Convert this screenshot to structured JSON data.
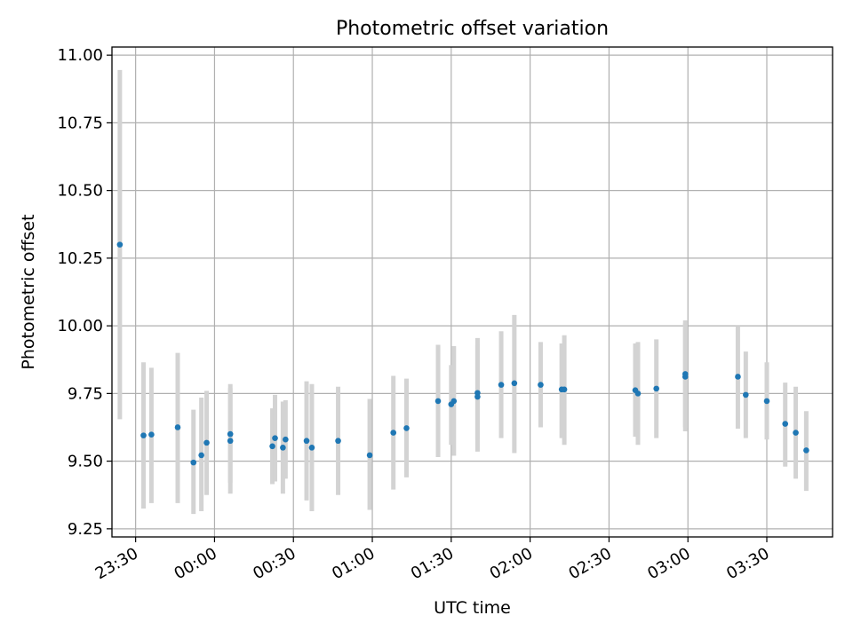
{
  "chart_data": {
    "type": "scatter",
    "title": "Photometric offset variation",
    "xlabel": "UTC time",
    "ylabel": "Photometric offset",
    "x_unit": "UTC time (HH:MM)",
    "xlim": [
      "23:21",
      "23:59:59+03:55"
    ],
    "x_range_display": {
      "start": "23:21",
      "end": "03:55 (next day)"
    },
    "ylim": [
      9.22,
      11.03
    ],
    "x_ticks": [
      "23:30",
      "00:00",
      "00:30",
      "01:00",
      "01:30",
      "02:00",
      "02:30",
      "03:00",
      "03:30"
    ],
    "y_ticks": [
      "9.25",
      "9.50",
      "9.75",
      "10.00",
      "10.25",
      "10.50",
      "10.75",
      "11.00"
    ],
    "grid": true,
    "colors": {
      "points": "#1f77b4",
      "error_bars": "#d3d3d3",
      "grid": "#b0b0b0"
    },
    "series": [
      {
        "points": [
          {
            "x": "23:24",
            "y": 10.3,
            "lo": 9.655,
            "hi": 10.945
          },
          {
            "x": "23:33",
            "y": 9.595,
            "lo": 9.325,
            "hi": 9.865
          },
          {
            "x": "23:36",
            "y": 9.598,
            "lo": 9.345,
            "hi": 9.845
          },
          {
            "x": "23:46",
            "y": 9.625,
            "lo": 9.345,
            "hi": 9.9
          },
          {
            "x": "23:52",
            "y": 9.495,
            "lo": 9.305,
            "hi": 9.69
          },
          {
            "x": "23:55",
            "y": 9.522,
            "lo": 9.315,
            "hi": 9.735
          },
          {
            "x": "23:57",
            "y": 9.568,
            "lo": 9.375,
            "hi": 9.76
          },
          {
            "x": "00:06",
            "y": 9.6,
            "lo": 9.42,
            "hi": 9.785
          },
          {
            "x": "00:06",
            "y": 9.575,
            "lo": 9.38,
            "hi": 9.77
          },
          {
            "x": "00:22",
            "y": 9.555,
            "lo": 9.415,
            "hi": 9.695
          },
          {
            "x": "00:23",
            "y": 9.585,
            "lo": 9.425,
            "hi": 9.745
          },
          {
            "x": "00:26",
            "y": 9.55,
            "lo": 9.38,
            "hi": 9.72
          },
          {
            "x": "00:27",
            "y": 9.58,
            "lo": 9.435,
            "hi": 9.725
          },
          {
            "x": "00:35",
            "y": 9.575,
            "lo": 9.355,
            "hi": 9.795
          },
          {
            "x": "00:37",
            "y": 9.55,
            "lo": 9.315,
            "hi": 9.785
          },
          {
            "x": "00:47",
            "y": 9.575,
            "lo": 9.375,
            "hi": 9.775
          },
          {
            "x": "00:59",
            "y": 9.522,
            "lo": 9.32,
            "hi": 9.73
          },
          {
            "x": "01:08",
            "y": 9.605,
            "lo": 9.395,
            "hi": 9.815
          },
          {
            "x": "01:13",
            "y": 9.622,
            "lo": 9.44,
            "hi": 9.805
          },
          {
            "x": "01:25",
            "y": 9.722,
            "lo": 9.515,
            "hi": 9.93
          },
          {
            "x": "01:30",
            "y": 9.71,
            "lo": 9.56,
            "hi": 9.855
          },
          {
            "x": "01:31",
            "y": 9.722,
            "lo": 9.52,
            "hi": 9.925
          },
          {
            "x": "01:40",
            "y": 9.752,
            "lo": 9.535,
            "hi": 9.955
          },
          {
            "x": "01:40",
            "y": 9.738,
            "lo": 9.58,
            "hi": 9.93
          },
          {
            "x": "01:49",
            "y": 9.782,
            "lo": 9.585,
            "hi": 9.98
          },
          {
            "x": "01:54",
            "y": 9.788,
            "lo": 9.53,
            "hi": 10.04
          },
          {
            "x": "02:04",
            "y": 9.782,
            "lo": 9.625,
            "hi": 9.94
          },
          {
            "x": "02:12",
            "y": 9.765,
            "lo": 9.585,
            "hi": 9.935
          },
          {
            "x": "02:13",
            "y": 9.765,
            "lo": 9.56,
            "hi": 9.965
          },
          {
            "x": "02:40",
            "y": 9.762,
            "lo": 9.59,
            "hi": 9.935
          },
          {
            "x": "02:41",
            "y": 9.75,
            "lo": 9.56,
            "hi": 9.94
          },
          {
            "x": "02:48",
            "y": 9.768,
            "lo": 9.585,
            "hi": 9.95
          },
          {
            "x": "02:59",
            "y": 9.812,
            "lo": 9.61,
            "hi": 10.01
          },
          {
            "x": "02:59",
            "y": 9.822,
            "lo": 9.625,
            "hi": 10.02
          },
          {
            "x": "03:19",
            "y": 9.812,
            "lo": 9.62,
            "hi": 10.0
          },
          {
            "x": "03:22",
            "y": 9.745,
            "lo": 9.585,
            "hi": 9.905
          },
          {
            "x": "03:30",
            "y": 9.722,
            "lo": 9.58,
            "hi": 9.865
          },
          {
            "x": "03:37",
            "y": 9.638,
            "lo": 9.48,
            "hi": 9.79
          },
          {
            "x": "03:41",
            "y": 9.605,
            "lo": 9.435,
            "hi": 9.775
          },
          {
            "x": "03:45",
            "y": 9.54,
            "lo": 9.39,
            "hi": 9.685
          }
        ]
      }
    ]
  }
}
